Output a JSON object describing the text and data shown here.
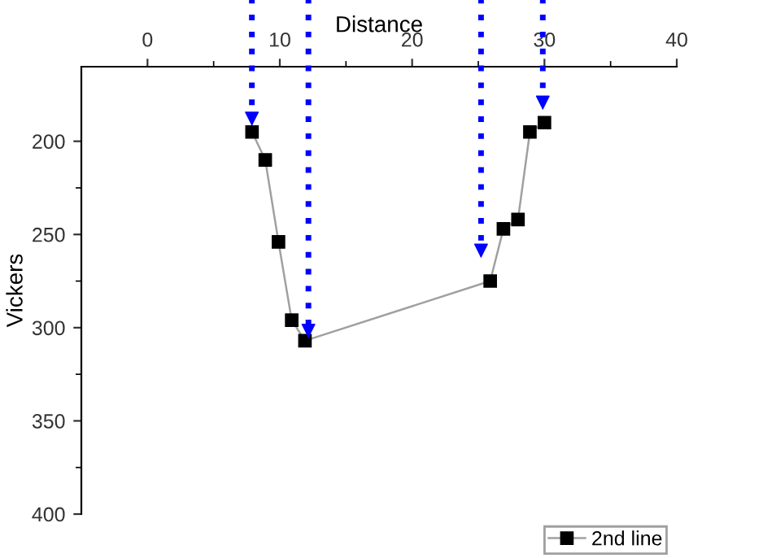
{
  "chart_data": {
    "type": "line",
    "xlabel": "Distance",
    "ylabel": "Vickers",
    "xlim": [
      -5,
      40
    ],
    "xticks": [
      0,
      10,
      20,
      30,
      40
    ],
    "ylim": [
      400,
      160
    ],
    "yticks": [
      200,
      250,
      300,
      350,
      400
    ],
    "marker": "square",
    "legend": "bottom right",
    "grid": false,
    "series": [
      {
        "name": "2nd line",
        "color": "#000000",
        "x": [
          7.9,
          8.9,
          9.9,
          10.9,
          11.9,
          25.9,
          26.9,
          28.0,
          28.9,
          30.0
        ],
        "values": [
          195,
          210,
          254,
          296,
          307,
          275,
          247,
          242,
          195,
          190
        ]
      }
    ]
  }
}
